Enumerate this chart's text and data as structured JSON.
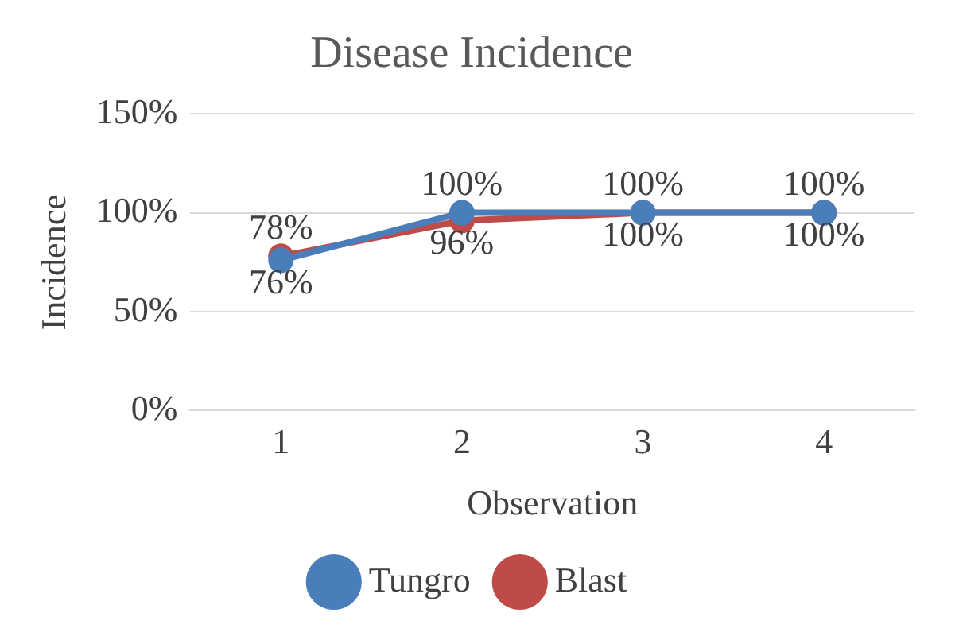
{
  "chart_data": {
    "type": "line",
    "title": "Disease Incidence",
    "xlabel": "Observation",
    "ylabel": "Incidence",
    "categories": [
      "1",
      "2",
      "3",
      "4"
    ],
    "series": [
      {
        "name": "Tungro",
        "color": "#4a7ebb",
        "values": [
          76,
          100,
          100,
          100
        ],
        "value_labels": [
          "76%",
          "100%",
          "100%",
          "100%"
        ]
      },
      {
        "name": "Blast",
        "color": "#be4b48",
        "values": [
          78,
          96,
          100,
          100
        ],
        "value_labels": [
          "78%",
          "96%",
          "100%",
          "100%"
        ]
      }
    ],
    "ylim": [
      0,
      150
    ],
    "yticks": [
      {
        "value": 0,
        "label": "0%"
      },
      {
        "value": 50,
        "label": "50%"
      },
      {
        "value": 100,
        "label": "100%"
      },
      {
        "value": 150,
        "label": "150%"
      }
    ],
    "grid": "y",
    "legend": "bottom",
    "marker": "circle",
    "line_style": "solid"
  }
}
